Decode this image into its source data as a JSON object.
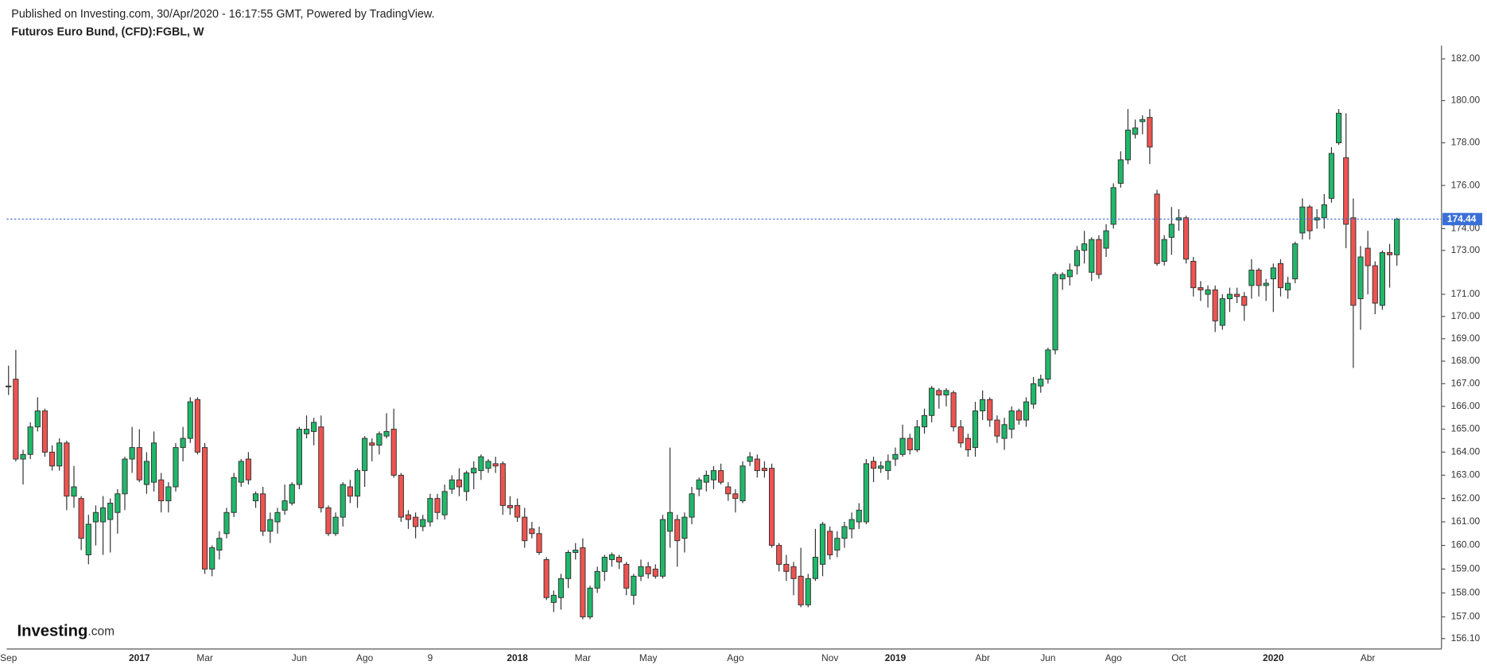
{
  "chart_data": {
    "type": "candlestick",
    "subtitle": "Published on Investing.com, 30/Apr/2020 - 16:17:55 GMT, Powered by TradingView.",
    "title": "Futuros Euro Bund, (CFD):FGBL, W",
    "logo": {
      "name": "Investing",
      "suffix": ".com"
    },
    "log_scale": true,
    "up_color": "#1fb86a",
    "down_color": "#ef5350",
    "last_price": 174.44,
    "last_price_color": "#3a6fd8",
    "ylim": [
      155.67,
      182.64
    ],
    "yticks": [
      {
        "value": 182,
        "label": "182.00"
      },
      {
        "value": 180,
        "label": "180.00"
      },
      {
        "value": 178,
        "label": "178.00"
      },
      {
        "value": 176,
        "label": "176.00"
      },
      {
        "value": 174,
        "label": "174.00"
      },
      {
        "value": 173,
        "label": "173.00"
      },
      {
        "value": 171,
        "label": "171.00"
      },
      {
        "value": 170,
        "label": "170.00"
      },
      {
        "value": 169,
        "label": "169.00"
      },
      {
        "value": 168,
        "label": "168.00"
      },
      {
        "value": 167,
        "label": "167.00"
      },
      {
        "value": 166,
        "label": "166.00"
      },
      {
        "value": 165,
        "label": "165.00"
      },
      {
        "value": 164,
        "label": "164.00"
      },
      {
        "value": 163,
        "label": "163.00"
      },
      {
        "value": 162,
        "label": "162.00"
      },
      {
        "value": 161,
        "label": "161.00"
      },
      {
        "value": 160,
        "label": "160.00"
      },
      {
        "value": 159,
        "label": "159.00"
      },
      {
        "value": 158,
        "label": "158.00"
      },
      {
        "value": 157,
        "label": "157.00"
      },
      {
        "value": 156.1,
        "label": "156.10"
      }
    ],
    "categories": [
      "Sep",
      null,
      null,
      null,
      null,
      null,
      null,
      null,
      null,
      null,
      null,
      null,
      null,
      null,
      null,
      null,
      null,
      null,
      "2017",
      null,
      null,
      null,
      null,
      null,
      null,
      null,
      null,
      "Mar",
      null,
      null,
      null,
      null,
      null,
      null,
      null,
      null,
      null,
      null,
      null,
      null,
      "Jun",
      null,
      null,
      null,
      null,
      null,
      null,
      null,
      null,
      "Ago",
      null,
      null,
      null,
      null,
      null,
      null,
      null,
      null,
      "9",
      null,
      null,
      null,
      null,
      null,
      null,
      null,
      null,
      null,
      null,
      null,
      "2018",
      null,
      null,
      null,
      null,
      null,
      null,
      null,
      null,
      "Mar",
      null,
      null,
      null,
      null,
      null,
      null,
      null,
      null,
      "May",
      null,
      null,
      null,
      null,
      null,
      null,
      null,
      null,
      null,
      null,
      null,
      "Ago",
      null,
      null,
      null,
      null,
      null,
      null,
      null,
      null,
      null,
      null,
      null,
      null,
      "Nov",
      null,
      null,
      null,
      null,
      null,
      null,
      null,
      null,
      "2019",
      null,
      null,
      null,
      null,
      null,
      null,
      null,
      null,
      null,
      null,
      null,
      "Abr",
      null,
      null,
      null,
      null,
      null,
      null,
      null,
      null,
      "Jun",
      null,
      null,
      null,
      null,
      null,
      null,
      null,
      null,
      "Ago",
      null,
      null,
      null,
      null,
      null,
      null,
      null,
      null,
      "Oct",
      null,
      null,
      null,
      null,
      null,
      null,
      null,
      null,
      null,
      null,
      null,
      null,
      "2020",
      null,
      null,
      null,
      null,
      null,
      null,
      null,
      null,
      null,
      null,
      null,
      null,
      "Abr",
      null,
      null,
      null,
      null
    ],
    "open": [
      166.9,
      167.2,
      163.7,
      163.9,
      165.1,
      165.8,
      164.0,
      163.4,
      164.4,
      162.1,
      162.0,
      159.6,
      161.0,
      161.0,
      161.1,
      161.4,
      162.2,
      163.7,
      164.2,
      162.6,
      162.7,
      162.8,
      161.9,
      162.5,
      164.2,
      164.6,
      166.3,
      164.2,
      159.0,
      159.8,
      160.5,
      161.4,
      162.7,
      163.7,
      161.9,
      162.2,
      160.6,
      161.0,
      161.5,
      161.8,
      162.6,
      164.8,
      164.9,
      165.1,
      161.6,
      160.5,
      161.2,
      162.5,
      162.1,
      163.2,
      164.4,
      164.3,
      164.7,
      165.0,
      163.0,
      161.3,
      161.2,
      160.8,
      161.0,
      162.0,
      161.3,
      162.4,
      162.8,
      162.3,
      163.1,
      163.2,
      163.3,
      163.5,
      163.5,
      161.7,
      161.7,
      161.2,
      160.7,
      160.5,
      159.4,
      157.6,
      157.8,
      158.6,
      159.7,
      159.9,
      157.0,
      158.2,
      158.9,
      159.4,
      159.5,
      159.2,
      157.9,
      158.7,
      159.1,
      159.0,
      158.7,
      160.6,
      161.1,
      160.3,
      161.2,
      162.4,
      162.7,
      162.8,
      163.2,
      162.5,
      162.2,
      161.9,
      163.6,
      163.7,
      163.3,
      163.3,
      160.0,
      159.2,
      159.1,
      158.7,
      157.5,
      158.6,
      159.2,
      160.6,
      159.8,
      160.3,
      160.7,
      161.0,
      161.0,
      163.6,
      163.3,
      163.2,
      163.7,
      163.9,
      164.6,
      164.1,
      165.1,
      165.6,
      166.7,
      166.5,
      166.6,
      165.1,
      164.6,
      164.2,
      165.8,
      166.3,
      165.4,
      164.6,
      165.0,
      165.8,
      165.4,
      166.1,
      166.9,
      167.2,
      168.5,
      171.7,
      171.8,
      172.3,
      173.0,
      172.0,
      173.5,
      173.1,
      174.2,
      176.1,
      177.2,
      178.4,
      179.0,
      179.2,
      175.6,
      172.5,
      173.6,
      174.4,
      174.5,
      172.5,
      171.3,
      171.0,
      171.2,
      169.6,
      170.8,
      171.0,
      170.9,
      171.4,
      172.1,
      171.4,
      171.7,
      172.4,
      171.2,
      171.7,
      173.8,
      175.0,
      174.4,
      174.5,
      175.4,
      178.0,
      177.3,
      174.5,
      170.8,
      173.1,
      172.3,
      170.5,
      172.9,
      172.8
    ],
    "high": [
      167.8,
      168.5,
      164.1,
      165.3,
      166.4,
      165.9,
      164.3,
      164.6,
      164.5,
      163.4,
      162.1,
      161.3,
      161.7,
      162.1,
      162.0,
      162.4,
      163.8,
      165.1,
      165.0,
      164.0,
      164.9,
      163.1,
      162.7,
      164.4,
      165.1,
      166.4,
      166.4,
      164.4,
      160.0,
      160.6,
      161.6,
      163.1,
      163.7,
      164.0,
      162.3,
      162.5,
      161.4,
      161.6,
      162.6,
      162.7,
      165.1,
      165.6,
      165.5,
      165.6,
      161.7,
      161.4,
      162.7,
      162.8,
      163.3,
      164.7,
      164.6,
      164.9,
      165.7,
      165.9,
      163.1,
      161.5,
      161.4,
      161.3,
      162.2,
      162.2,
      162.6,
      163.0,
      163.3,
      163.2,
      163.6,
      163.9,
      163.7,
      163.8,
      163.6,
      162.1,
      162.0,
      161.6,
      161.0,
      160.8,
      159.5,
      158.1,
      158.8,
      159.8,
      160.1,
      160.3,
      158.3,
      159.1,
      159.6,
      159.7,
      159.6,
      159.3,
      158.8,
      159.4,
      159.3,
      159.2,
      161.3,
      164.2,
      161.3,
      161.4,
      162.5,
      162.9,
      163.2,
      163.4,
      163.5,
      162.7,
      162.4,
      163.6,
      164.0,
      163.9,
      163.6,
      163.5,
      160.1,
      159.6,
      159.3,
      159.9,
      158.8,
      160.7,
      161.0,
      160.8,
      160.6,
      161.0,
      161.4,
      161.8,
      163.7,
      163.8,
      163.6,
      163.9,
      164.2,
      165.2,
      164.8,
      165.4,
      165.9,
      166.9,
      166.8,
      166.8,
      166.7,
      165.4,
      164.8,
      166.2,
      166.7,
      166.4,
      165.6,
      165.5,
      166.0,
      165.9,
      166.4,
      167.3,
      167.4,
      168.6,
      172.0,
      172.0,
      172.4,
      173.2,
      173.9,
      173.6,
      173.7,
      174.2,
      176.1,
      177.6,
      179.6,
      179.1,
      179.3,
      179.6,
      175.8,
      173.7,
      175.0,
      174.9,
      174.6,
      172.7,
      171.6,
      171.4,
      171.4,
      171.0,
      171.3,
      171.3,
      171.1,
      172.6,
      172.2,
      171.7,
      172.4,
      172.6,
      171.8,
      173.4,
      175.4,
      175.1,
      174.9,
      175.6,
      177.8,
      179.6,
      179.4,
      175.4,
      173.2,
      173.9,
      172.5,
      173.0,
      173.3,
      174.5
    ],
    "low": [
      166.5,
      163.6,
      162.6,
      163.7,
      164.9,
      163.8,
      163.2,
      163.2,
      161.5,
      161.6,
      159.8,
      159.2,
      160.0,
      159.6,
      159.7,
      160.5,
      161.5,
      163.1,
      162.7,
      162.2,
      162.3,
      161.4,
      161.4,
      162.3,
      163.6,
      164.4,
      163.9,
      158.8,
      158.7,
      159.4,
      160.3,
      161.2,
      162.5,
      162.6,
      161.6,
      160.4,
      160.1,
      160.5,
      161.3,
      161.7,
      162.4,
      164.6,
      164.3,
      161.4,
      160.4,
      160.4,
      160.8,
      161.8,
      161.6,
      162.5,
      163.6,
      163.9,
      164.6,
      162.9,
      161.0,
      160.7,
      160.3,
      160.6,
      160.8,
      161.1,
      161.1,
      162.2,
      162.1,
      161.9,
      162.4,
      162.8,
      163.1,
      163.1,
      161.3,
      161.3,
      161.0,
      159.9,
      160.3,
      159.6,
      157.7,
      157.2,
      157.3,
      158.2,
      159.4,
      156.9,
      156.9,
      158.0,
      158.5,
      159.1,
      159.0,
      157.9,
      157.5,
      158.5,
      158.6,
      158.6,
      158.6,
      159.9,
      159.1,
      159.7,
      160.9,
      162.1,
      162.3,
      162.4,
      162.6,
      161.9,
      161.4,
      161.8,
      163.4,
      162.9,
      162.9,
      159.9,
      158.9,
      158.5,
      157.9,
      157.4,
      157.4,
      158.5,
      158.7,
      159.4,
      159.5,
      159.9,
      160.3,
      160.7,
      160.9,
      162.7,
      163.1,
      162.8,
      163.4,
      163.8,
      163.9,
      164.0,
      164.8,
      165.3,
      165.9,
      166.0,
      164.9,
      164.2,
      163.8,
      163.8,
      165.4,
      165.1,
      164.4,
      164.1,
      164.6,
      165.2,
      165.1,
      165.9,
      166.6,
      167.0,
      168.3,
      171.2,
      171.4,
      171.9,
      172.4,
      171.6,
      171.7,
      172.7,
      174.0,
      175.9,
      177.0,
      178.2,
      178.4,
      177.0,
      172.3,
      172.3,
      172.8,
      173.9,
      172.4,
      170.9,
      170.7,
      170.4,
      169.3,
      169.4,
      170.2,
      170.6,
      169.8,
      170.8,
      170.9,
      170.7,
      170.2,
      170.9,
      170.8,
      171.5,
      173.5,
      173.5,
      174.0,
      174.0,
      175.2,
      177.9,
      173.1,
      167.7,
      169.4,
      171.0,
      170.1,
      170.3,
      171.3,
      172.3
    ],
    "close": [
      166.9,
      163.7,
      163.9,
      165.1,
      165.8,
      164.0,
      163.4,
      164.4,
      162.1,
      162.5,
      160.3,
      160.9,
      161.4,
      161.6,
      161.8,
      162.2,
      163.7,
      164.2,
      162.8,
      163.6,
      164.4,
      161.9,
      162.5,
      164.2,
      164.6,
      166.2,
      164.0,
      159.0,
      159.9,
      160.3,
      161.4,
      162.9,
      163.6,
      162.8,
      162.2,
      160.6,
      161.1,
      161.4,
      161.9,
      162.6,
      165.0,
      165.0,
      165.3,
      161.6,
      160.5,
      161.2,
      162.6,
      162.1,
      163.2,
      164.6,
      164.3,
      164.8,
      164.9,
      163.0,
      161.2,
      161.1,
      160.8,
      161.1,
      162.0,
      161.4,
      162.3,
      162.8,
      162.5,
      163.1,
      163.3,
      163.8,
      163.6,
      163.4,
      161.7,
      161.6,
      161.2,
      160.2,
      160.5,
      159.7,
      157.8,
      157.9,
      158.6,
      159.7,
      159.8,
      157.0,
      158.2,
      158.9,
      159.5,
      159.6,
      159.3,
      158.2,
      158.7,
      159.1,
      158.8,
      158.7,
      161.1,
      161.4,
      160.2,
      161.2,
      162.2,
      162.8,
      163.0,
      163.2,
      162.7,
      162.2,
      162.0,
      163.4,
      163.8,
      163.2,
      163.2,
      160.0,
      159.2,
      158.9,
      158.6,
      157.5,
      158.6,
      159.5,
      160.9,
      159.6,
      160.3,
      160.8,
      161.1,
      161.5,
      163.5,
      163.3,
      163.4,
      163.6,
      163.9,
      164.6,
      164.1,
      165.1,
      165.6,
      166.8,
      166.5,
      166.7,
      165.1,
      164.4,
      164.1,
      165.8,
      166.3,
      165.4,
      164.7,
      165.2,
      165.8,
      165.4,
      166.2,
      167.0,
      167.2,
      168.5,
      171.9,
      171.9,
      172.1,
      173.0,
      173.3,
      173.5,
      171.9,
      173.9,
      175.9,
      177.2,
      178.6,
      178.7,
      179.1,
      177.8,
      172.4,
      173.5,
      174.2,
      174.5,
      172.6,
      171.3,
      171.2,
      171.2,
      169.8,
      170.8,
      171.0,
      170.9,
      170.5,
      172.1,
      171.4,
      171.5,
      172.2,
      171.3,
      171.5,
      173.3,
      175.0,
      173.9,
      174.5,
      175.1,
      177.5,
      179.4,
      174.2,
      170.5,
      172.7,
      172.3,
      170.6,
      172.9,
      172.8,
      174.44
    ]
  }
}
